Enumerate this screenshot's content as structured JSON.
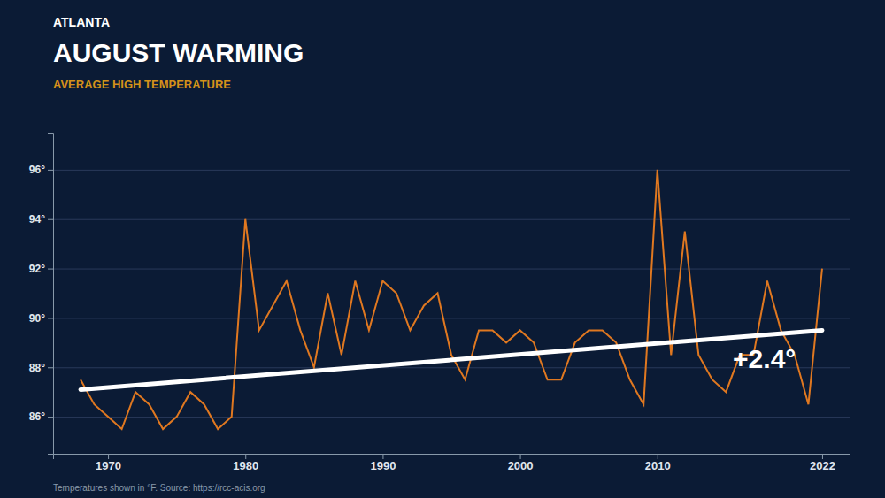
{
  "chart_data": {
    "type": "line",
    "supertitle": "ATLANTA",
    "title": "AUGUST WARMING",
    "subtitle": "AVERAGE HIGH TEMPERATURE",
    "caption": "Temperatures shown in °F. Source: https://rcc-acis.org",
    "x": [
      1968,
      1969,
      1970,
      1971,
      1972,
      1973,
      1974,
      1975,
      1976,
      1977,
      1978,
      1979,
      1980,
      1981,
      1982,
      1983,
      1984,
      1985,
      1986,
      1987,
      1988,
      1989,
      1990,
      1991,
      1992,
      1993,
      1994,
      1995,
      1996,
      1997,
      1998,
      1999,
      2000,
      2001,
      2002,
      2003,
      2004,
      2005,
      2006,
      2007,
      2008,
      2009,
      2010,
      2011,
      2012,
      2013,
      2014,
      2015,
      2016,
      2017,
      2018,
      2019,
      2020,
      2021,
      2022
    ],
    "series": [
      {
        "color": "#e07820",
        "values": [
          87.5,
          86.5,
          86.0,
          85.5,
          87.0,
          86.5,
          85.5,
          86.0,
          87.0,
          86.5,
          85.5,
          86.0,
          94.0,
          89.5,
          90.5,
          91.5,
          89.5,
          88.0,
          91.0,
          88.5,
          91.5,
          89.5,
          91.5,
          91.0,
          89.5,
          90.5,
          91.0,
          88.5,
          87.5,
          89.5,
          89.5,
          89.0,
          89.5,
          89.0,
          87.5,
          87.5,
          89.0,
          89.5,
          89.5,
          89.0,
          87.5,
          86.5,
          96.0,
          88.5,
          93.5,
          88.5,
          87.5,
          87.0,
          88.5,
          88.5,
          91.5,
          89.5,
          88.5,
          86.5,
          92.0
        ]
      }
    ],
    "trend_line": {
      "x": [
        1968,
        2022
      ],
      "y": [
        87.1,
        89.5
      ],
      "color": "#ffffff"
    },
    "annotations": [
      {
        "text": "+2.4°",
        "x": 2015.5,
        "y": 87.8
      }
    ],
    "xlim": [
      1966,
      2024
    ],
    "xticks": [
      1970,
      1980,
      1990,
      2000,
      2010,
      2022
    ],
    "ylim": [
      84.5,
      97.5
    ],
    "yticks": [
      {
        "value": 86,
        "label": "86°"
      },
      {
        "value": 88,
        "label": "88°"
      },
      {
        "value": 90,
        "label": "90°"
      },
      {
        "value": 92,
        "label": "92°"
      },
      {
        "value": 94,
        "label": "94°"
      },
      {
        "value": 96,
        "label": "96°"
      }
    ],
    "grid": true
  }
}
